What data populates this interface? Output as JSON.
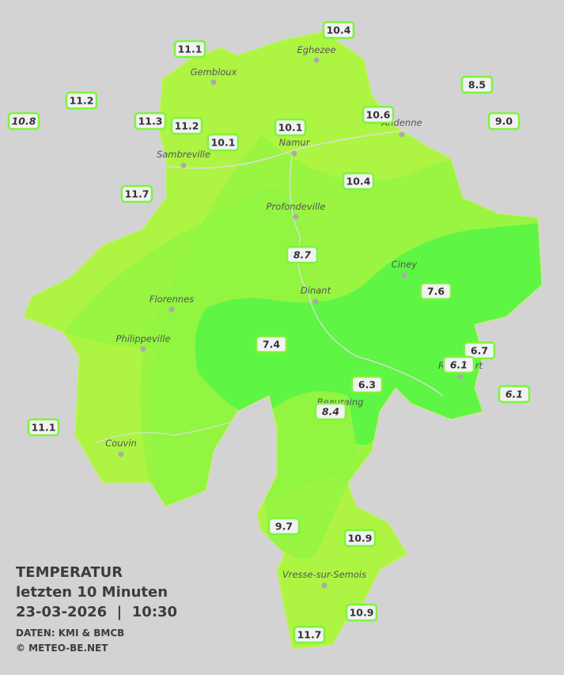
{
  "title": {
    "line1": "TEMPERATUR",
    "line2": "letzten 10 Minuten",
    "line3": "23-03-2026  |  10:30",
    "source": "DATEN: KMI & BMCB",
    "copyright": "© METEO-BE.NET"
  },
  "cities": [
    {
      "name": "Eghezee"
    },
    {
      "name": "Gembloux"
    },
    {
      "name": "Andenne"
    },
    {
      "name": "Namur"
    },
    {
      "name": "Sambreville"
    },
    {
      "name": "Profondeville"
    },
    {
      "name": "Ciney"
    },
    {
      "name": "Dinant"
    },
    {
      "name": "Florennes"
    },
    {
      "name": "Philippeville"
    },
    {
      "name": "Couvin"
    },
    {
      "name": "Vresse-sur-Semois"
    },
    {
      "name": "Beauraing"
    },
    {
      "name": "Rochefort"
    }
  ],
  "stations": [
    {
      "label": "10.4"
    },
    {
      "label": "11.1"
    },
    {
      "label": "11.2"
    },
    {
      "label": "10.8"
    },
    {
      "label": "11.3"
    },
    {
      "label": "11.2"
    },
    {
      "label": "10.1"
    },
    {
      "label": "10.1"
    },
    {
      "label": "10.6"
    },
    {
      "label": "8.5"
    },
    {
      "label": "9.0"
    },
    {
      "label": "10.4"
    },
    {
      "label": "11.7"
    },
    {
      "label": "8.7"
    },
    {
      "label": "7.6"
    },
    {
      "label": "7.4"
    },
    {
      "label": "6.7"
    },
    {
      "label": "6.1"
    },
    {
      "label": "6.1"
    },
    {
      "label": "6.3"
    },
    {
      "label": "8.4"
    },
    {
      "label": "11.1"
    },
    {
      "label": "9.7"
    },
    {
      "label": "10.9"
    },
    {
      "label": "10.9"
    },
    {
      "label": "11.7"
    }
  ]
}
